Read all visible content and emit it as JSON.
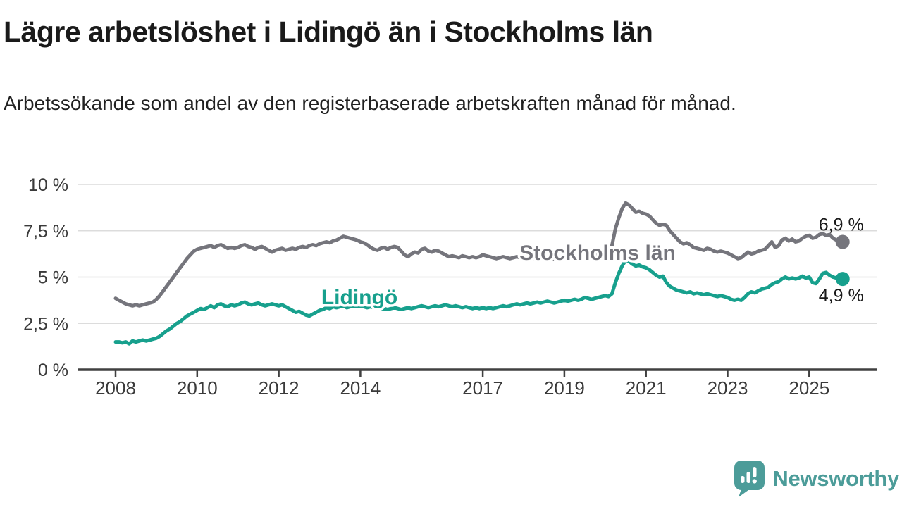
{
  "header": {
    "title": "Lägre arbetslöshet i Lidingö än i Stockholms län",
    "subtitle": "Arbetssökande som andel av den registerbaserade arbetskraften månad för månad."
  },
  "footer": {
    "brand": "Newsworthy",
    "brand_color": "#4c9c99",
    "logo_icon": "newsworthy-speech-bubble-bar-chart"
  },
  "colors": {
    "stockholm_line": "#75757c",
    "lidingo_line": "#17a08d",
    "gridline": "#dcdcdc",
    "axis": "#404040",
    "tick_text": "#3a3a3a",
    "end_label_text": "#1a1a1a"
  },
  "chart_data": {
    "type": "line",
    "unit": "%",
    "frequency": "monthly",
    "x_start": "2008-01",
    "x_end": "2025-10",
    "grid": "horizontal-only",
    "ylim": [
      0,
      10
    ],
    "y_ticks": [
      {
        "value": 0,
        "label": "0 %"
      },
      {
        "value": 2.5,
        "label": "2,5 %"
      },
      {
        "value": 5,
        "label": "5 %"
      },
      {
        "value": 7.5,
        "label": "7,5 %"
      },
      {
        "value": 10,
        "label": "10 %"
      }
    ],
    "x_ticks": [
      {
        "year": 2008,
        "label": "2008"
      },
      {
        "year": 2010,
        "label": "2010"
      },
      {
        "year": 2012,
        "label": "2012"
      },
      {
        "year": 2014,
        "label": "2014"
      },
      {
        "year": 2017,
        "label": "2017"
      },
      {
        "year": 2019,
        "label": "2019"
      },
      {
        "year": 2021,
        "label": "2021"
      },
      {
        "year": 2023,
        "label": "2023"
      },
      {
        "year": 2025,
        "label": "2025"
      }
    ],
    "series": [
      {
        "name": "Stockholms län",
        "color": "#75757c",
        "end_label": "6,9 %",
        "values": [
          3.85,
          3.75,
          3.65,
          3.55,
          3.5,
          3.45,
          3.5,
          3.45,
          3.5,
          3.55,
          3.6,
          3.65,
          3.8,
          4.0,
          4.25,
          4.5,
          4.75,
          5.0,
          5.25,
          5.5,
          5.75,
          6.0,
          6.2,
          6.4,
          6.5,
          6.55,
          6.6,
          6.65,
          6.7,
          6.6,
          6.7,
          6.75,
          6.65,
          6.55,
          6.6,
          6.55,
          6.6,
          6.7,
          6.75,
          6.65,
          6.6,
          6.5,
          6.6,
          6.65,
          6.55,
          6.45,
          6.35,
          6.45,
          6.5,
          6.55,
          6.45,
          6.5,
          6.55,
          6.5,
          6.6,
          6.65,
          6.6,
          6.7,
          6.75,
          6.7,
          6.8,
          6.85,
          6.9,
          6.85,
          6.95,
          7.0,
          7.1,
          7.2,
          7.15,
          7.1,
          7.05,
          7.0,
          6.9,
          6.85,
          6.75,
          6.6,
          6.5,
          6.45,
          6.55,
          6.6,
          6.5,
          6.6,
          6.65,
          6.6,
          6.4,
          6.2,
          6.1,
          6.25,
          6.35,
          6.3,
          6.5,
          6.55,
          6.4,
          6.35,
          6.45,
          6.4,
          6.3,
          6.2,
          6.1,
          6.15,
          6.1,
          6.05,
          6.15,
          6.1,
          6.05,
          6.1,
          6.05,
          6.1,
          6.2,
          6.15,
          6.1,
          6.05,
          6.0,
          6.05,
          6.1,
          6.05,
          6.0,
          6.05,
          6.1,
          6.05,
          6.1,
          6.05,
          6.0,
          6.0,
          5.95,
          6.0,
          6.05,
          6.0,
          5.95,
          6.0,
          6.05,
          6.0,
          6.05,
          6.0,
          6.05,
          6.1,
          6.05,
          6.1,
          6.2,
          6.15,
          6.1,
          6.2,
          6.25,
          6.3,
          6.4,
          6.4,
          6.7,
          7.6,
          8.2,
          8.7,
          9.0,
          8.9,
          8.7,
          8.5,
          8.55,
          8.45,
          8.4,
          8.3,
          8.1,
          7.9,
          7.8,
          7.85,
          7.8,
          7.5,
          7.3,
          7.1,
          6.9,
          6.8,
          6.85,
          6.75,
          6.6,
          6.55,
          6.5,
          6.45,
          6.55,
          6.5,
          6.4,
          6.35,
          6.4,
          6.35,
          6.3,
          6.2,
          6.1,
          6.0,
          6.05,
          6.2,
          6.35,
          6.25,
          6.3,
          6.4,
          6.45,
          6.5,
          6.7,
          6.9,
          6.6,
          6.7,
          7.0,
          7.1,
          6.95,
          7.05,
          6.9,
          6.95,
          7.1,
          7.2,
          7.25,
          7.1,
          7.15,
          7.3,
          7.35,
          7.25,
          7.3,
          7.1,
          7.0,
          6.9
        ]
      },
      {
        "name": "Lidingö",
        "color": "#17a08d",
        "end_label": "4,9 %",
        "values": [
          1.5,
          1.5,
          1.45,
          1.5,
          1.4,
          1.55,
          1.5,
          1.55,
          1.6,
          1.55,
          1.6,
          1.65,
          1.7,
          1.8,
          1.95,
          2.1,
          2.2,
          2.35,
          2.5,
          2.6,
          2.75,
          2.9,
          3.0,
          3.1,
          3.2,
          3.3,
          3.25,
          3.35,
          3.45,
          3.35,
          3.5,
          3.55,
          3.45,
          3.4,
          3.5,
          3.45,
          3.5,
          3.6,
          3.65,
          3.55,
          3.5,
          3.55,
          3.6,
          3.5,
          3.45,
          3.5,
          3.55,
          3.5,
          3.45,
          3.5,
          3.4,
          3.3,
          3.2,
          3.1,
          3.15,
          3.05,
          2.95,
          2.9,
          3.0,
          3.1,
          3.2,
          3.25,
          3.35,
          3.3,
          3.4,
          3.35,
          3.4,
          3.45,
          3.35,
          3.4,
          3.45,
          3.4,
          3.45,
          3.4,
          3.35,
          3.4,
          3.35,
          3.3,
          3.25,
          3.3,
          3.25,
          3.3,
          3.35,
          3.3,
          3.25,
          3.3,
          3.35,
          3.3,
          3.35,
          3.4,
          3.45,
          3.4,
          3.35,
          3.4,
          3.45,
          3.4,
          3.45,
          3.5,
          3.45,
          3.4,
          3.45,
          3.4,
          3.35,
          3.4,
          3.35,
          3.3,
          3.35,
          3.3,
          3.35,
          3.3,
          3.35,
          3.3,
          3.35,
          3.4,
          3.45,
          3.4,
          3.45,
          3.5,
          3.55,
          3.5,
          3.55,
          3.6,
          3.55,
          3.6,
          3.65,
          3.6,
          3.65,
          3.7,
          3.65,
          3.6,
          3.65,
          3.7,
          3.75,
          3.7,
          3.75,
          3.8,
          3.75,
          3.8,
          3.9,
          3.85,
          3.8,
          3.85,
          3.9,
          3.95,
          4.0,
          3.95,
          4.1,
          4.7,
          5.2,
          5.6,
          5.9,
          5.85,
          5.7,
          5.6,
          5.65,
          5.55,
          5.5,
          5.4,
          5.25,
          5.1,
          5.0,
          5.05,
          4.7,
          4.5,
          4.4,
          4.3,
          4.25,
          4.2,
          4.15,
          4.2,
          4.1,
          4.15,
          4.1,
          4.05,
          4.1,
          4.05,
          4.0,
          3.95,
          4.0,
          3.95,
          3.9,
          3.8,
          3.75,
          3.8,
          3.75,
          3.9,
          4.1,
          4.2,
          4.15,
          4.25,
          4.35,
          4.4,
          4.45,
          4.6,
          4.7,
          4.75,
          4.9,
          5.0,
          4.9,
          4.95,
          4.9,
          4.95,
          5.05,
          4.95,
          5.0,
          4.7,
          4.65,
          4.9,
          5.2,
          5.25,
          5.1,
          5.0,
          4.95,
          4.9
        ]
      }
    ]
  }
}
